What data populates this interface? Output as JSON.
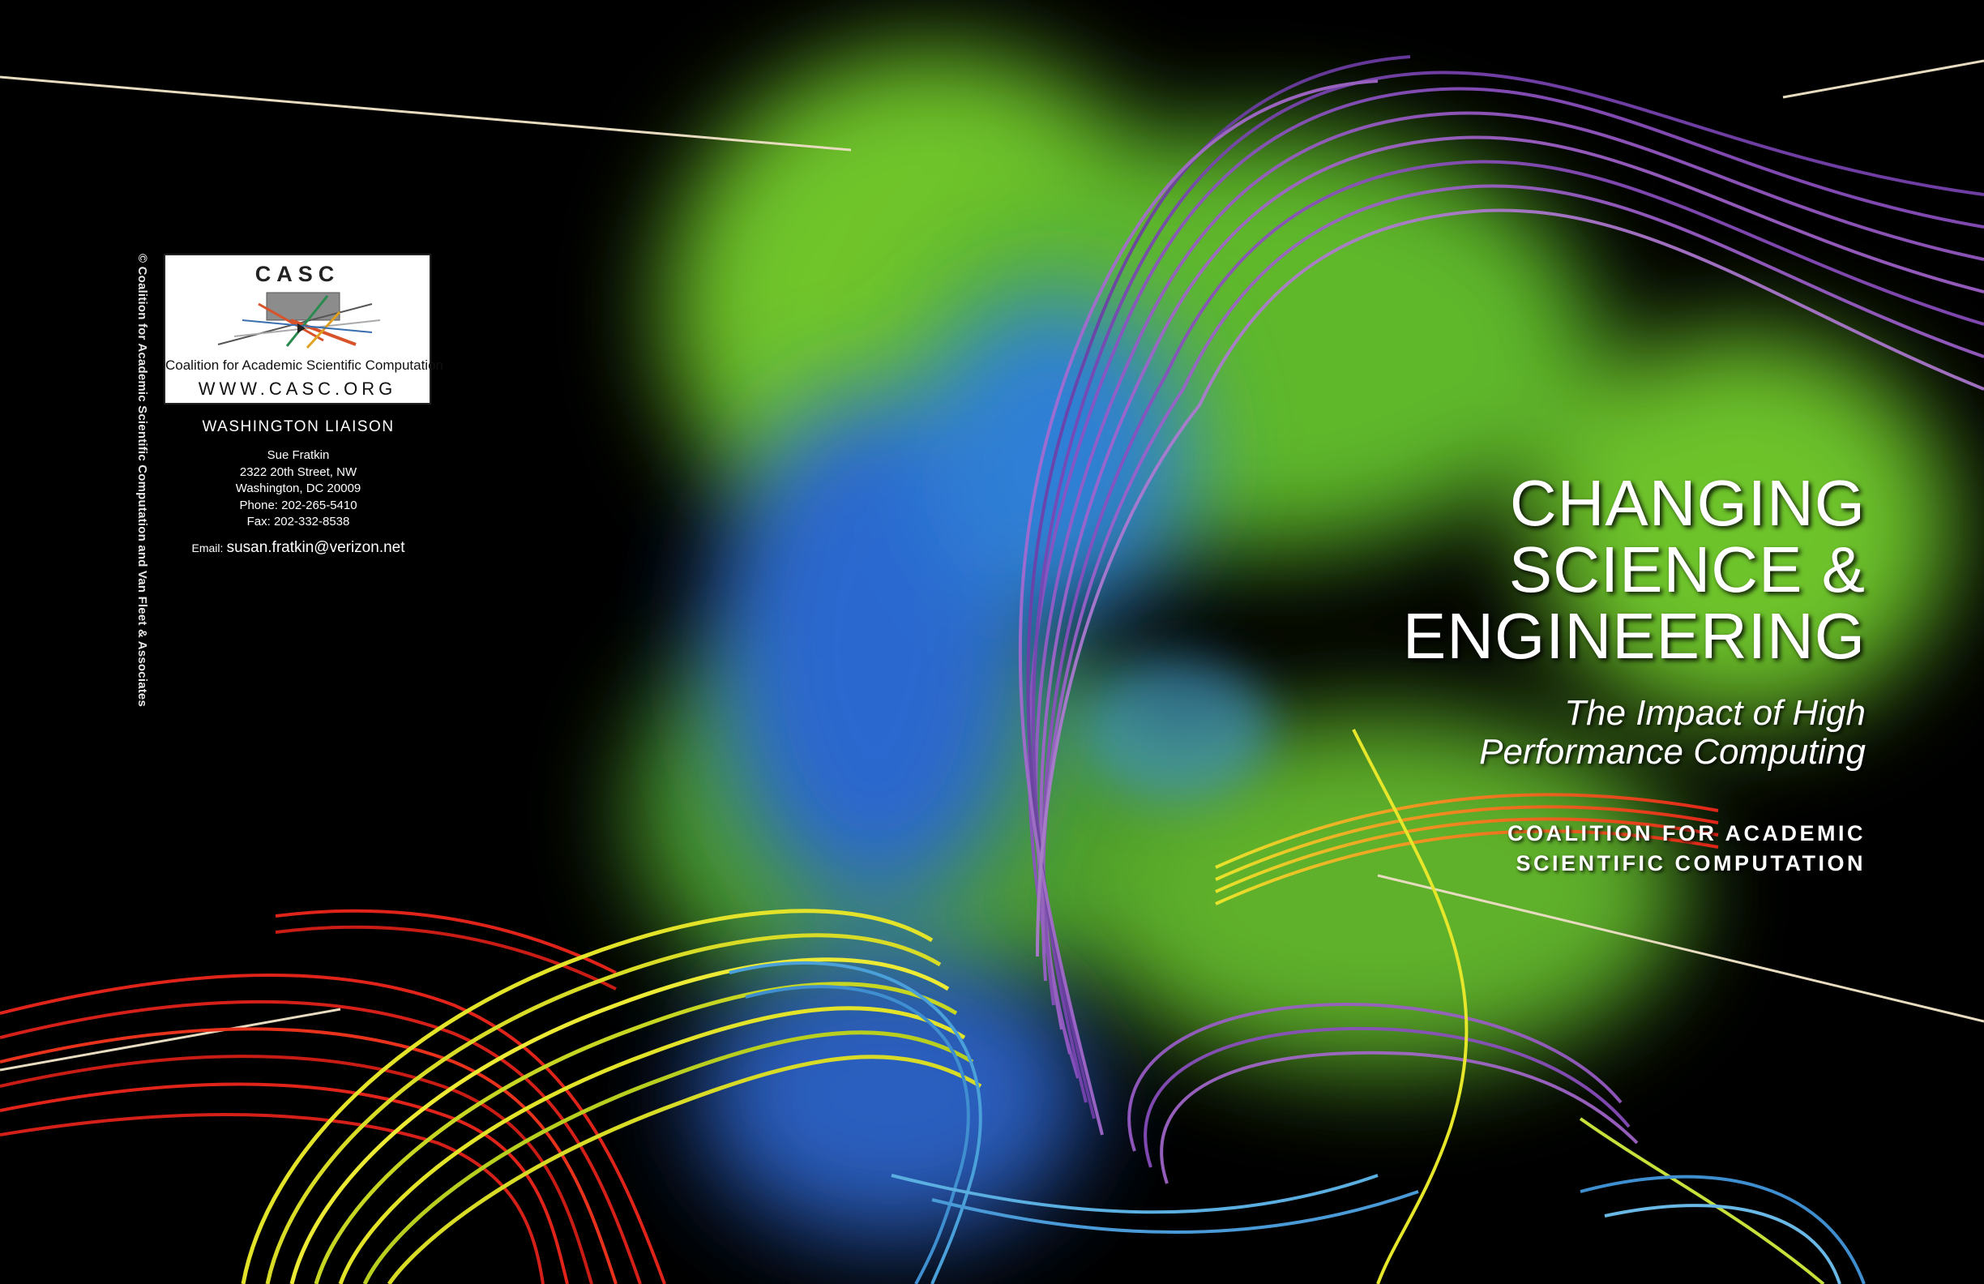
{
  "logo": {
    "acronym": "CASC",
    "full_name": "Coalition for Academic Scientific Computation",
    "url": "WWW.CASC.ORG"
  },
  "copyright": "© Coalition for Academic Scientific Computation and Van Fleet & Associates",
  "liaison": {
    "heading": "WASHINGTON LIAISON",
    "name": "Sue Fratkin",
    "street": "2322 20th Street, NW",
    "city": "Washington, DC 20009",
    "phone": "Phone: 202-265-5410",
    "fax": "Fax: 202-332-8538",
    "email_label": "Email:",
    "email": "susan.fratkin@verizon.net"
  },
  "cover": {
    "title_lines": [
      "CHANGING",
      "SCIENCE &",
      "ENGINEERING"
    ],
    "subtitle_lines": [
      "The Impact of High",
      "Performance Computing"
    ],
    "org_lines": [
      "COALITION FOR ACADEMIC",
      "SCIENTIFIC COMPUTATION"
    ]
  },
  "colors": {
    "background": "#000000",
    "cloud_green": "#7ad02a",
    "cloud_blue": "#2a6fd0",
    "streamline_purple": "#9b55c8",
    "streamline_red": "#e02a1a",
    "streamline_yellow": "#e6e62a",
    "text": "#ffffff"
  }
}
